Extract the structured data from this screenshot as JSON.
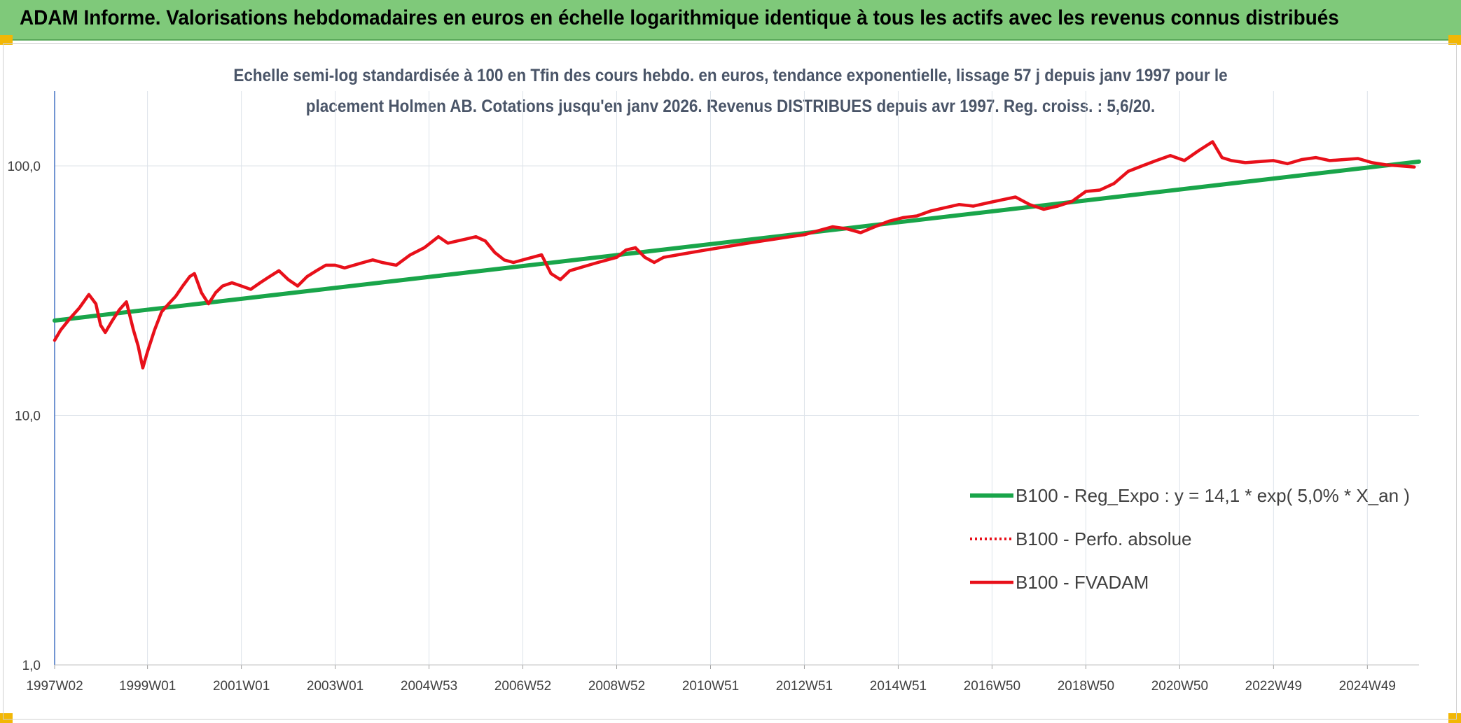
{
  "header": {
    "title": "ADAM Informe. Valorisations hebdomadaires en euros en échelle logarithmique identique à tous les actifs avec les revenus connus distribués"
  },
  "chart_data": {
    "type": "line",
    "title_line1": "Echelle semi-log standardisée à 100 en Tfin des cours hebdo. en euros, tendance exponentielle, lissage 57 j depuis janv 1997 pour le",
    "title_line2": "placement Holmen AB. Cotations jusqu'en janv 2026. Revenus DISTRIBUES depuis avr 1997. Reg. croiss. : 5,6/20.",
    "y_scale": "log",
    "ylim": [
      1,
      180
    ],
    "y_ticks": [
      {
        "value": 1,
        "label": "1,0"
      },
      {
        "value": 10,
        "label": "10,0"
      },
      {
        "value": 100,
        "label": "100,0"
      }
    ],
    "xlim": [
      1997.02,
      2026.1
    ],
    "x_ticks": [
      {
        "value": 1997.02,
        "label": "1997W02"
      },
      {
        "value": 1999.0,
        "label": "1999W01"
      },
      {
        "value": 2001.0,
        "label": "2001W01"
      },
      {
        "value": 2003.0,
        "label": "2003W01"
      },
      {
        "value": 2005.0,
        "label": "2004W53"
      },
      {
        "value": 2007.0,
        "label": "2006W52"
      },
      {
        "value": 2009.0,
        "label": "2008W52"
      },
      {
        "value": 2011.0,
        "label": "2010W51"
      },
      {
        "value": 2013.0,
        "label": "2012W51"
      },
      {
        "value": 2015.0,
        "label": "2014W51"
      },
      {
        "value": 2017.0,
        "label": "2016W50"
      },
      {
        "value": 2019.0,
        "label": "2018W50"
      },
      {
        "value": 2021.0,
        "label": "2020W50"
      },
      {
        "value": 2023.0,
        "label": "2022W49"
      },
      {
        "value": 2025.0,
        "label": "2024W49"
      }
    ],
    "grid": true,
    "legend_position": "bottom-right",
    "series": [
      {
        "name": "B100 - Reg_Expo : y = 14,1 * exp( 5,0% *  X_an )",
        "color": "#19a54a",
        "style": "solid",
        "x": [
          1997.02,
          2026.1
        ],
        "values": [
          24.0,
          104.0
        ]
      },
      {
        "name": "B100 - Perfo. absolue",
        "color": "#e8101a",
        "style": "dotted",
        "x": [],
        "values": []
      },
      {
        "name": "B100 - FVADAM",
        "color": "#e8101a",
        "style": "solid",
        "x": [
          1997.02,
          1997.15,
          1997.35,
          1997.55,
          1997.75,
          1997.9,
          1998.0,
          1998.1,
          1998.25,
          1998.4,
          1998.55,
          1998.7,
          1998.8,
          1998.9,
          1999.0,
          1999.15,
          1999.3,
          1999.45,
          1999.6,
          1999.75,
          1999.9,
          2000.0,
          2000.15,
          2000.3,
          2000.45,
          2000.6,
          2000.8,
          2001.0,
          2001.2,
          2001.4,
          2001.6,
          2001.8,
          2002.0,
          2002.2,
          2002.4,
          2002.6,
          2002.8,
          2003.0,
          2003.2,
          2003.4,
          2003.6,
          2003.8,
          2004.0,
          2004.3,
          2004.6,
          2004.9,
          2005.2,
          2005.4,
          2005.6,
          2005.8,
          2006.0,
          2006.2,
          2006.4,
          2006.6,
          2006.8,
          2007.0,
          2007.2,
          2007.4,
          2007.6,
          2007.8,
          2008.0,
          2008.2,
          2008.4,
          2008.6,
          2008.8,
          2009.0,
          2009.2,
          2009.4,
          2009.6,
          2009.8,
          2010.0,
          2010.3,
          2010.6,
          2010.9,
          2011.2,
          2011.5,
          2011.8,
          2012.1,
          2012.4,
          2012.7,
          2013.0,
          2013.3,
          2013.6,
          2013.9,
          2014.2,
          2014.5,
          2014.8,
          2015.1,
          2015.4,
          2015.7,
          2016.0,
          2016.3,
          2016.6,
          2016.9,
          2017.2,
          2017.5,
          2017.8,
          2018.1,
          2018.4,
          2018.7,
          2019.0,
          2019.3,
          2019.6,
          2019.9,
          2020.2,
          2020.5,
          2020.8,
          2021.1,
          2021.4,
          2021.7,
          2021.9,
          2022.1,
          2022.4,
          2022.7,
          2023.0,
          2023.3,
          2023.6,
          2023.9,
          2024.2,
          2024.5,
          2024.8,
          2025.1,
          2025.4,
          2025.7,
          2026.0
        ],
        "values": [
          20,
          22,
          24.5,
          27,
          30.5,
          28,
          23,
          21.5,
          24,
          26.5,
          28.5,
          22,
          19,
          15.5,
          18,
          22,
          26,
          28,
          30,
          33,
          36,
          37,
          31,
          28,
          31,
          33,
          34,
          33,
          32,
          34,
          36,
          38,
          35,
          33,
          36,
          38,
          40,
          40,
          39,
          40,
          41,
          42,
          41,
          40,
          44,
          47,
          52,
          49,
          50,
          51,
          52,
          50,
          45,
          42,
          41,
          42,
          43,
          44,
          37,
          35,
          38,
          39,
          40,
          41,
          42,
          43,
          46,
          47,
          43,
          41,
          43,
          44,
          45,
          46,
          47,
          48,
          49,
          50,
          51,
          52,
          53,
          55,
          57,
          56,
          54,
          57,
          60,
          62,
          63,
          66,
          68,
          70,
          69,
          71,
          73,
          75,
          70,
          67,
          69,
          72,
          79,
          80,
          85,
          95,
          100,
          105,
          110,
          105,
          115,
          125,
          108,
          105,
          103,
          104,
          105,
          102,
          106,
          108,
          105,
          106,
          107,
          103,
          101,
          100,
          99
        ]
      }
    ]
  }
}
